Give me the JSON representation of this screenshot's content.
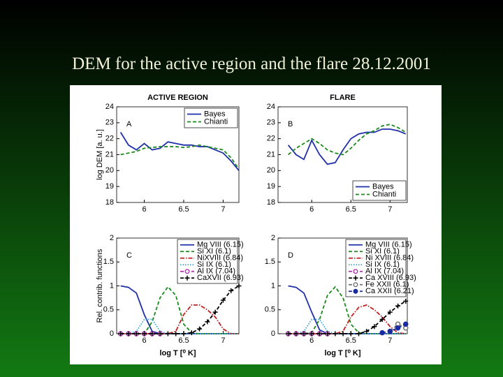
{
  "title": "DEM for the active region and the flare 28.12.2001",
  "chart_data": [
    {
      "type": "line",
      "title": "ACTIVE REGION",
      "annotation": "A",
      "ylabel": "log DEM [a. u.]",
      "x": [
        5.7,
        5.8,
        5.9,
        6.0,
        6.1,
        6.2,
        6.3,
        6.4,
        6.5,
        6.6,
        6.7,
        6.8,
        6.9,
        7.0,
        7.1,
        7.2
      ],
      "series": [
        {
          "name": "Bayes",
          "color": "#1f2fa8",
          "style": "solid",
          "values": [
            22.4,
            21.6,
            21.3,
            21.7,
            21.3,
            21.4,
            21.8,
            21.7,
            21.6,
            21.6,
            21.5,
            21.5,
            21.3,
            21.1,
            20.6,
            20.0
          ]
        },
        {
          "name": "Chianti",
          "color": "#1a8a1a",
          "style": "dashed",
          "values": [
            21.0,
            21.1,
            21.2,
            21.4,
            21.45,
            21.5,
            21.5,
            21.5,
            21.45,
            21.5,
            21.6,
            21.5,
            21.4,
            21.3,
            20.8,
            20.1
          ]
        }
      ],
      "xlim": [
        5.65,
        7.2
      ],
      "ylim": [
        18,
        24
      ],
      "xticks": [
        6,
        6.5,
        7
      ],
      "yticks": [
        18,
        19,
        20,
        21,
        22,
        23,
        24
      ],
      "legend": "upper right"
    },
    {
      "type": "line",
      "title": "FLARE",
      "annotation": "B",
      "x": [
        5.7,
        5.8,
        5.9,
        6.0,
        6.1,
        6.2,
        6.3,
        6.4,
        6.5,
        6.6,
        6.7,
        6.8,
        6.9,
        7.0,
        7.1,
        7.2
      ],
      "series": [
        {
          "name": "Bayes",
          "color": "#1f2fa8",
          "style": "solid",
          "values": [
            21.6,
            21.0,
            20.7,
            21.9,
            21.0,
            20.4,
            20.5,
            21.3,
            22.0,
            22.3,
            22.4,
            22.4,
            22.6,
            22.6,
            22.5,
            22.3
          ]
        },
        {
          "name": "Chianti",
          "color": "#1a8a1a",
          "style": "dashed",
          "values": [
            21.0,
            21.4,
            21.7,
            22.0,
            21.7,
            21.3,
            21.1,
            21.0,
            21.4,
            21.9,
            22.3,
            22.5,
            22.8,
            22.9,
            22.7,
            22.4
          ]
        }
      ],
      "xlim": [
        5.57,
        7.22
      ],
      "ylim": [
        18,
        24
      ],
      "xticks": [
        6,
        6.5,
        7
      ],
      "yticks": [
        18,
        19,
        20,
        21,
        22,
        23,
        24
      ],
      "legend": "lower right"
    },
    {
      "type": "line",
      "annotation": "C",
      "ylabel": "Rel. contrib. functions",
      "xlabel": "log T [⁰ K]",
      "x": [
        5.7,
        5.8,
        5.9,
        6.0,
        6.1,
        6.2,
        6.3,
        6.4,
        6.5,
        6.6,
        6.7,
        6.8,
        6.9,
        7.0,
        7.1,
        7.2
      ],
      "series": [
        {
          "name": "Mg VIII (6.15)",
          "color": "#1f2fa8",
          "style": "solid",
          "values": [
            1.0,
            0.97,
            0.85,
            0.4,
            0.05,
            0,
            0,
            0,
            0,
            0,
            0,
            0,
            0,
            0,
            0,
            0
          ]
        },
        {
          "name": "Si XI (6.1)",
          "color": "#1a8a1a",
          "style": "dashed",
          "values": [
            0,
            0,
            0,
            0,
            0.25,
            0.75,
            0.98,
            0.8,
            0.2,
            0.02,
            0,
            0,
            0,
            0,
            0,
            0
          ]
        },
        {
          "name": "NiXVIII (6.84)",
          "color": "#c02020",
          "style": "dashdot",
          "values": [
            0,
            0,
            0,
            0,
            0,
            0,
            0,
            0.05,
            0.4,
            0.6,
            0.6,
            0.5,
            0.35,
            0.1,
            0,
            0
          ]
        },
        {
          "name": "Si IX (6.1)",
          "color": "#40a0d0",
          "style": "dotted",
          "values": [
            0,
            0,
            0.05,
            0.3,
            0.3,
            0.05,
            0,
            0,
            0,
            0,
            0,
            0,
            0,
            0,
            0,
            0
          ]
        },
        {
          "name": "Al IX (7.04)",
          "color": "#b030b0",
          "style": "dashed",
          "marker": "circle-open",
          "values": [
            0,
            0,
            0,
            0,
            0,
            0,
            null,
            null,
            null,
            null,
            null,
            null,
            null,
            null,
            null,
            null
          ]
        },
        {
          "name": "CaXVII (6.93)",
          "color": "#000000",
          "style": "dashed",
          "marker": "plus",
          "values": [
            0,
            0,
            0,
            0,
            0,
            0,
            0,
            0,
            0,
            0.02,
            0.1,
            0.25,
            0.45,
            0.7,
            0.9,
            1.0
          ]
        }
      ],
      "xlim": [
        5.65,
        7.2
      ],
      "ylim": [
        0,
        2
      ],
      "xticks": [
        6,
        6.5,
        7
      ],
      "yticks": [
        0,
        0.5,
        1,
        1.5,
        2
      ],
      "legend": "upper right"
    },
    {
      "type": "line",
      "annotation": "D",
      "xlabel": "log T [⁰ K]",
      "x": [
        5.7,
        5.8,
        5.9,
        6.0,
        6.1,
        6.2,
        6.3,
        6.4,
        6.5,
        6.6,
        6.7,
        6.8,
        6.9,
        7.0,
        7.1,
        7.2
      ],
      "series": [
        {
          "name": "Mg VIII (6.15)",
          "color": "#1f2fa8",
          "style": "solid",
          "values": [
            1.0,
            0.97,
            0.85,
            0.45,
            0.08,
            0,
            0,
            0,
            0,
            0,
            0,
            0,
            0,
            0,
            0,
            0
          ]
        },
        {
          "name": "Si XI (6.1)",
          "color": "#1a8a1a",
          "style": "dashed",
          "values": [
            0,
            0,
            0,
            0.02,
            0.3,
            0.8,
            0.98,
            0.75,
            0.2,
            0.02,
            0,
            0,
            0,
            0,
            0,
            0
          ]
        },
        {
          "name": "Ni XVIII (6.84)",
          "color": "#c02020",
          "style": "dashdot",
          "values": [
            0,
            0,
            0,
            0,
            0,
            0,
            0,
            0.05,
            0.35,
            0.55,
            0.6,
            0.5,
            0.35,
            0.15,
            0.02,
            0
          ]
        },
        {
          "name": "Si IX (6.1)",
          "color": "#40a0d0",
          "style": "dotted",
          "values": [
            0,
            0,
            0.05,
            0.3,
            0.3,
            0.05,
            0,
            0,
            0,
            0,
            0,
            0,
            0,
            0,
            0,
            0
          ]
        },
        {
          "name": "Al IX (7.04)",
          "color": "#b030b0",
          "style": "dashed",
          "marker": "circle-open",
          "values": [
            0,
            0,
            0,
            0,
            0,
            0,
            null,
            null,
            null,
            null,
            null,
            null,
            null,
            null,
            null,
            null
          ]
        },
        {
          "name": "Ca XVIII (6.93)",
          "color": "#000000",
          "style": "dashed",
          "marker": "plus",
          "values": [
            0,
            0,
            0,
            0,
            0,
            0,
            0,
            0,
            0,
            0,
            0.05,
            0.15,
            0.3,
            0.45,
            0.58,
            0.68
          ]
        },
        {
          "name": "Fe XXII (6.1)",
          "color": "#707070",
          "style": "dashed",
          "marker": "circle-open",
          "values": [
            null,
            null,
            null,
            null,
            null,
            null,
            null,
            null,
            null,
            null,
            null,
            null,
            null,
            0.05,
            0.2,
            0.12
          ]
        },
        {
          "name": "Ca XXII (6.21)",
          "color": "#1a2aa0",
          "style": "dashed",
          "marker": "circle-filled",
          "values": [
            null,
            null,
            null,
            null,
            null,
            null,
            null,
            null,
            null,
            null,
            null,
            null,
            0.02,
            0.05,
            0.12,
            0.2
          ]
        }
      ],
      "xlim": [
        5.57,
        7.22
      ],
      "ylim": [
        0,
        2
      ],
      "xticks": [
        6,
        6.5,
        7
      ],
      "yticks": [
        0,
        0.5,
        1,
        1.5,
        2
      ],
      "legend": "upper right"
    }
  ]
}
